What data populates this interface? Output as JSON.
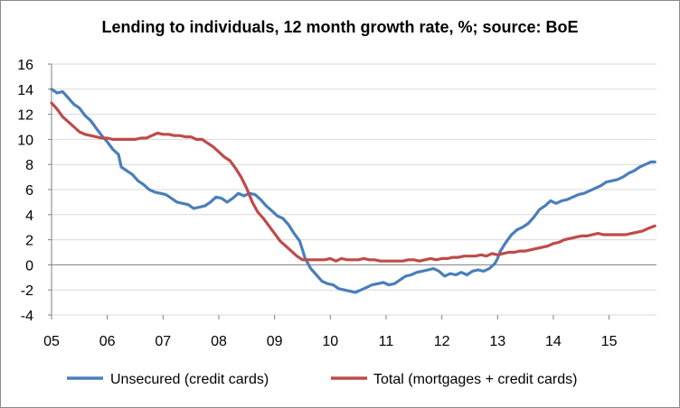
{
  "chart_data": {
    "type": "line",
    "title": "Lending to individuals, 12 month growth rate, %; source: BoE",
    "xlabel": "",
    "ylabel": "",
    "ylim": [
      -4,
      16
    ],
    "yticks": [
      -4,
      -2,
      0,
      2,
      4,
      6,
      8,
      10,
      12,
      14,
      16
    ],
    "xlim": [
      2005.0,
      2015.85
    ],
    "xticks": [
      {
        "value": 2005,
        "label": "05"
      },
      {
        "value": 2006,
        "label": "06"
      },
      {
        "value": 2007,
        "label": "07"
      },
      {
        "value": 2008,
        "label": "08"
      },
      {
        "value": 2009,
        "label": "09"
      },
      {
        "value": 2010,
        "label": "10"
      },
      {
        "value": 2011,
        "label": "11"
      },
      {
        "value": 2012,
        "label": "12"
      },
      {
        "value": 2013,
        "label": "13"
      },
      {
        "value": 2014,
        "label": "14"
      },
      {
        "value": 2015,
        "label": "15"
      }
    ],
    "grid": "horizontal",
    "legend_position": "bottom",
    "series": [
      {
        "name": "Unsecured (credit cards)",
        "color": "#4a7ebb",
        "points": [
          [
            2005.0,
            14.0
          ],
          [
            2005.1,
            13.7
          ],
          [
            2005.2,
            13.8
          ],
          [
            2005.3,
            13.3
          ],
          [
            2005.4,
            12.8
          ],
          [
            2005.5,
            12.5
          ],
          [
            2005.6,
            11.9
          ],
          [
            2005.7,
            11.5
          ],
          [
            2005.8,
            10.9
          ],
          [
            2005.9,
            10.3
          ],
          [
            2006.0,
            9.8
          ],
          [
            2006.1,
            9.2
          ],
          [
            2006.2,
            8.8
          ],
          [
            2006.25,
            7.8
          ],
          [
            2006.35,
            7.5
          ],
          [
            2006.45,
            7.2
          ],
          [
            2006.55,
            6.7
          ],
          [
            2006.65,
            6.4
          ],
          [
            2006.75,
            6.0
          ],
          [
            2006.85,
            5.8
          ],
          [
            2006.95,
            5.7
          ],
          [
            2007.05,
            5.6
          ],
          [
            2007.15,
            5.3
          ],
          [
            2007.25,
            5.0
          ],
          [
            2007.35,
            4.9
          ],
          [
            2007.45,
            4.8
          ],
          [
            2007.55,
            4.5
          ],
          [
            2007.65,
            4.6
          ],
          [
            2007.75,
            4.7
          ],
          [
            2007.85,
            5.0
          ],
          [
            2007.95,
            5.4
          ],
          [
            2008.05,
            5.3
          ],
          [
            2008.15,
            5.0
          ],
          [
            2008.25,
            5.3
          ],
          [
            2008.35,
            5.7
          ],
          [
            2008.45,
            5.5
          ],
          [
            2008.55,
            5.7
          ],
          [
            2008.65,
            5.6
          ],
          [
            2008.75,
            5.2
          ],
          [
            2008.85,
            4.7
          ],
          [
            2008.95,
            4.3
          ],
          [
            2009.05,
            3.9
          ],
          [
            2009.15,
            3.7
          ],
          [
            2009.25,
            3.2
          ],
          [
            2009.35,
            2.5
          ],
          [
            2009.45,
            1.9
          ],
          [
            2009.55,
            0.5
          ],
          [
            2009.65,
            -0.3
          ],
          [
            2009.75,
            -0.8
          ],
          [
            2009.85,
            -1.3
          ],
          [
            2009.95,
            -1.5
          ],
          [
            2010.05,
            -1.6
          ],
          [
            2010.15,
            -1.9
          ],
          [
            2010.25,
            -2.0
          ],
          [
            2010.35,
            -2.1
          ],
          [
            2010.45,
            -2.2
          ],
          [
            2010.55,
            -2.0
          ],
          [
            2010.65,
            -1.8
          ],
          [
            2010.75,
            -1.6
          ],
          [
            2010.85,
            -1.5
          ],
          [
            2010.95,
            -1.4
          ],
          [
            2011.05,
            -1.6
          ],
          [
            2011.15,
            -1.5
          ],
          [
            2011.25,
            -1.2
          ],
          [
            2011.35,
            -0.9
          ],
          [
            2011.45,
            -0.8
          ],
          [
            2011.55,
            -0.6
          ],
          [
            2011.65,
            -0.5
          ],
          [
            2011.75,
            -0.4
          ],
          [
            2011.85,
            -0.3
          ],
          [
            2011.95,
            -0.5
          ],
          [
            2012.05,
            -0.9
          ],
          [
            2012.15,
            -0.7
          ],
          [
            2012.25,
            -0.8
          ],
          [
            2012.35,
            -0.6
          ],
          [
            2012.45,
            -0.8
          ],
          [
            2012.55,
            -0.5
          ],
          [
            2012.65,
            -0.4
          ],
          [
            2012.75,
            -0.5
          ],
          [
            2012.85,
            -0.3
          ],
          [
            2012.95,
            0.1
          ],
          [
            2013.0,
            0.5
          ],
          [
            2013.05,
            1.1
          ],
          [
            2013.15,
            1.8
          ],
          [
            2013.25,
            2.4
          ],
          [
            2013.35,
            2.8
          ],
          [
            2013.45,
            3.0
          ],
          [
            2013.55,
            3.3
          ],
          [
            2013.65,
            3.8
          ],
          [
            2013.75,
            4.4
          ],
          [
            2013.85,
            4.7
          ],
          [
            2013.95,
            5.1
          ],
          [
            2014.05,
            4.9
          ],
          [
            2014.15,
            5.1
          ],
          [
            2014.25,
            5.2
          ],
          [
            2014.35,
            5.4
          ],
          [
            2014.45,
            5.6
          ],
          [
            2014.55,
            5.7
          ],
          [
            2014.65,
            5.9
          ],
          [
            2014.75,
            6.1
          ],
          [
            2014.85,
            6.3
          ],
          [
            2014.95,
            6.6
          ],
          [
            2015.05,
            6.7
          ],
          [
            2015.15,
            6.8
          ],
          [
            2015.25,
            7.0
          ],
          [
            2015.35,
            7.3
          ],
          [
            2015.45,
            7.5
          ],
          [
            2015.55,
            7.8
          ],
          [
            2015.65,
            8.0
          ],
          [
            2015.75,
            8.2
          ],
          [
            2015.82,
            8.2
          ]
        ]
      },
      {
        "name": "Total (mortgages + credit cards)",
        "color": "#be4b48",
        "points": [
          [
            2005.0,
            12.9
          ],
          [
            2005.1,
            12.4
          ],
          [
            2005.2,
            11.8
          ],
          [
            2005.3,
            11.4
          ],
          [
            2005.4,
            11.0
          ],
          [
            2005.5,
            10.6
          ],
          [
            2005.6,
            10.4
          ],
          [
            2005.7,
            10.3
          ],
          [
            2005.8,
            10.2
          ],
          [
            2005.9,
            10.1
          ],
          [
            2006.0,
            10.1
          ],
          [
            2006.1,
            10.0
          ],
          [
            2006.2,
            10.0
          ],
          [
            2006.3,
            10.0
          ],
          [
            2006.4,
            10.0
          ],
          [
            2006.5,
            10.0
          ],
          [
            2006.6,
            10.1
          ],
          [
            2006.7,
            10.1
          ],
          [
            2006.8,
            10.3
          ],
          [
            2006.9,
            10.5
          ],
          [
            2007.0,
            10.4
          ],
          [
            2007.1,
            10.4
          ],
          [
            2007.2,
            10.3
          ],
          [
            2007.3,
            10.3
          ],
          [
            2007.4,
            10.2
          ],
          [
            2007.5,
            10.2
          ],
          [
            2007.6,
            10.0
          ],
          [
            2007.7,
            10.0
          ],
          [
            2007.8,
            9.7
          ],
          [
            2007.9,
            9.4
          ],
          [
            2008.0,
            9.0
          ],
          [
            2008.1,
            8.6
          ],
          [
            2008.2,
            8.3
          ],
          [
            2008.3,
            7.7
          ],
          [
            2008.4,
            7.0
          ],
          [
            2008.5,
            6.1
          ],
          [
            2008.6,
            5.0
          ],
          [
            2008.7,
            4.2
          ],
          [
            2008.8,
            3.7
          ],
          [
            2008.9,
            3.1
          ],
          [
            2009.0,
            2.5
          ],
          [
            2009.1,
            1.9
          ],
          [
            2009.2,
            1.5
          ],
          [
            2009.3,
            1.1
          ],
          [
            2009.4,
            0.7
          ],
          [
            2009.5,
            0.4
          ],
          [
            2009.6,
            0.4
          ],
          [
            2009.7,
            0.4
          ],
          [
            2009.8,
            0.4
          ],
          [
            2009.9,
            0.4
          ],
          [
            2010.0,
            0.5
          ],
          [
            2010.1,
            0.3
          ],
          [
            2010.2,
            0.5
          ],
          [
            2010.3,
            0.4
          ],
          [
            2010.4,
            0.4
          ],
          [
            2010.5,
            0.4
          ],
          [
            2010.6,
            0.5
          ],
          [
            2010.7,
            0.4
          ],
          [
            2010.8,
            0.4
          ],
          [
            2010.9,
            0.3
          ],
          [
            2011.0,
            0.3
          ],
          [
            2011.1,
            0.3
          ],
          [
            2011.2,
            0.3
          ],
          [
            2011.3,
            0.3
          ],
          [
            2011.4,
            0.4
          ],
          [
            2011.5,
            0.4
          ],
          [
            2011.6,
            0.3
          ],
          [
            2011.7,
            0.4
          ],
          [
            2011.8,
            0.5
          ],
          [
            2011.9,
            0.4
          ],
          [
            2012.0,
            0.5
          ],
          [
            2012.1,
            0.5
          ],
          [
            2012.2,
            0.6
          ],
          [
            2012.3,
            0.6
          ],
          [
            2012.4,
            0.7
          ],
          [
            2012.5,
            0.7
          ],
          [
            2012.6,
            0.7
          ],
          [
            2012.7,
            0.8
          ],
          [
            2012.8,
            0.7
          ],
          [
            2012.9,
            0.9
          ],
          [
            2013.0,
            0.8
          ],
          [
            2013.1,
            0.9
          ],
          [
            2013.2,
            1.0
          ],
          [
            2013.3,
            1.0
          ],
          [
            2013.4,
            1.1
          ],
          [
            2013.5,
            1.1
          ],
          [
            2013.6,
            1.2
          ],
          [
            2013.7,
            1.3
          ],
          [
            2013.8,
            1.4
          ],
          [
            2013.9,
            1.5
          ],
          [
            2014.0,
            1.7
          ],
          [
            2014.1,
            1.8
          ],
          [
            2014.2,
            2.0
          ],
          [
            2014.3,
            2.1
          ],
          [
            2014.4,
            2.2
          ],
          [
            2014.5,
            2.3
          ],
          [
            2014.6,
            2.3
          ],
          [
            2014.7,
            2.4
          ],
          [
            2014.8,
            2.5
          ],
          [
            2014.9,
            2.4
          ],
          [
            2015.0,
            2.4
          ],
          [
            2015.1,
            2.4
          ],
          [
            2015.2,
            2.4
          ],
          [
            2015.3,
            2.4
          ],
          [
            2015.4,
            2.5
          ],
          [
            2015.5,
            2.6
          ],
          [
            2015.6,
            2.7
          ],
          [
            2015.7,
            2.9
          ],
          [
            2015.82,
            3.1
          ]
        ]
      }
    ]
  }
}
